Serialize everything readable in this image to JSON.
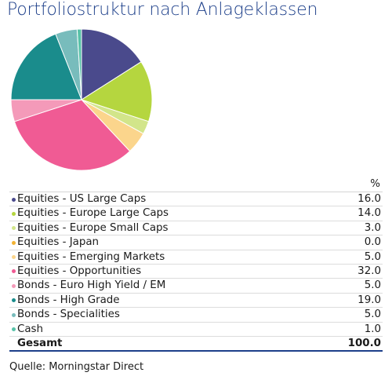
{
  "chart_data": {
    "type": "pie",
    "title": "Portfoliostruktur nach Anlageklassen",
    "unit_header": "%",
    "slices": [
      {
        "label": "Equities - US Large Caps",
        "value": 16.0,
        "display": "16.0",
        "color": "#4a4a8c"
      },
      {
        "label": "Equities - Europe Large Caps",
        "value": 14.0,
        "display": "14.0",
        "color": "#b5d63f"
      },
      {
        "label": "Equities - Europe Small Caps",
        "value": 3.0,
        "display": "3.0",
        "color": "#d2e58a"
      },
      {
        "label": "Equities - Japan",
        "value": 0.0,
        "display": "0.0",
        "color": "#f2b233"
      },
      {
        "label": "Equities - Emerging Markets",
        "value": 5.0,
        "display": "5.0",
        "color": "#fbd58c"
      },
      {
        "label": "Equities - Opportunities",
        "value": 32.0,
        "display": "32.0",
        "color": "#f05b94"
      },
      {
        "label": "Bonds - Euro High Yield / EM",
        "value": 5.0,
        "display": "5.0",
        "color": "#f49ab9"
      },
      {
        "label": "Bonds - High Grade",
        "value": 19.0,
        "display": "19.0",
        "color": "#1a8c8c"
      },
      {
        "label": "Bonds - Specialities",
        "value": 5.0,
        "display": "5.0",
        "color": "#78bcbc"
      },
      {
        "label": "Cash",
        "value": 1.0,
        "display": "1.0",
        "color": "#58c2a8"
      }
    ],
    "total": {
      "label": "Gesamt",
      "display": "100.0"
    }
  },
  "source": "Quelle: Morningstar Direct"
}
